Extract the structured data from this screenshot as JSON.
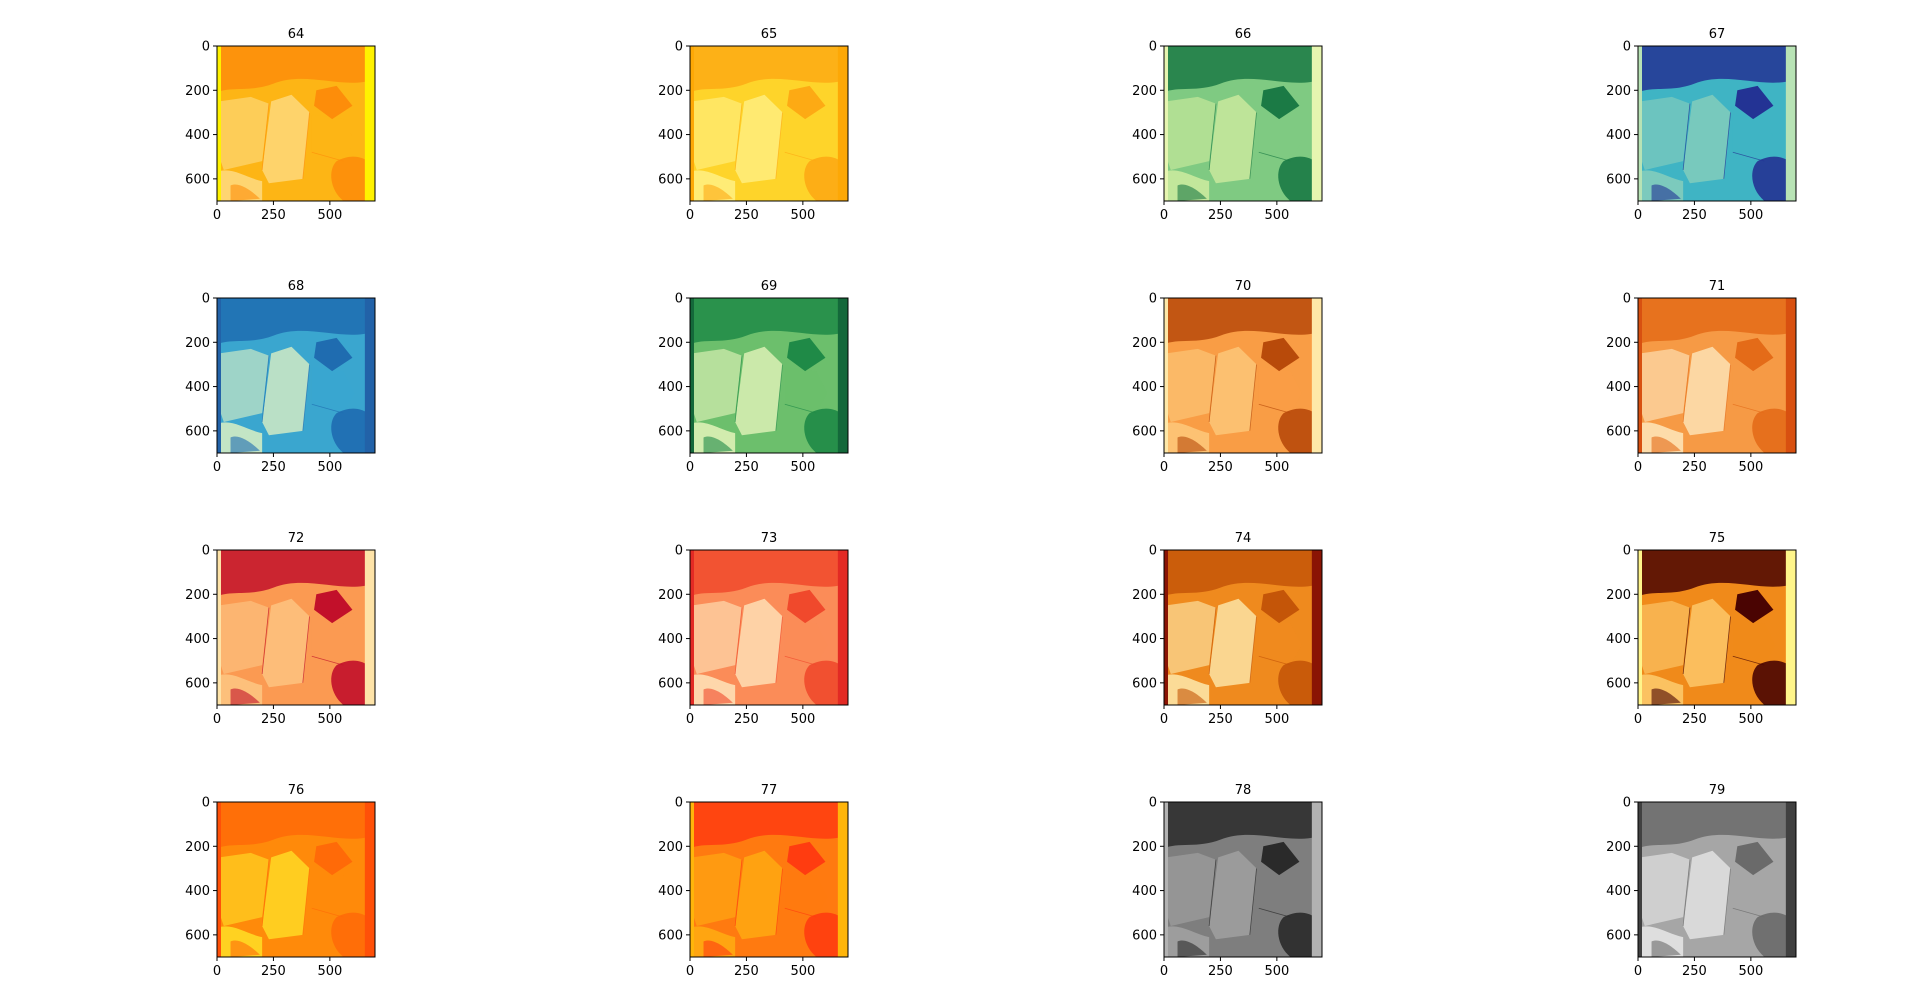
{
  "chart_data": {
    "type": "heatmap",
    "description_layout": "4x4 grid of image subplots",
    "xticks": [
      0,
      250,
      500
    ],
    "yticks": [
      0,
      200,
      400,
      600
    ],
    "xlim": [
      0,
      700
    ],
    "ylim": [
      700,
      0
    ],
    "panels": [
      {
        "title": "64",
        "palette": {
          "hi": "#fee090",
          "mid": "#fdb515",
          "lo": "#fd8d0a",
          "edge": "#fff200"
        }
      },
      {
        "title": "65",
        "palette": {
          "hi": "#fff490",
          "mid": "#fed42a",
          "lo": "#fdaa14",
          "edge": "#fda806"
        }
      },
      {
        "title": "66",
        "palette": {
          "hi": "#d8f0a3",
          "mid": "#7fca82",
          "lo": "#1b7a45",
          "edge": "#e6f5b0"
        }
      },
      {
        "title": "67",
        "palette": {
          "hi": "#91d2bb",
          "mid": "#3fb4c4",
          "lo": "#233394",
          "edge": "#b8e3b5"
        }
      },
      {
        "title": "68",
        "palette": {
          "hi": "#f1f9c2",
          "mid": "#3aa6cf",
          "lo": "#1f6cb0",
          "edge": "#2262a8"
        }
      },
      {
        "title": "69",
        "palette": {
          "hi": "#f4fbc4",
          "mid": "#6cbf6c",
          "lo": "#1f8a47",
          "edge": "#14683a"
        }
      },
      {
        "title": "70",
        "palette": {
          "hi": "#fdcf83",
          "mid": "#f99d45",
          "lo": "#b84a0a",
          "edge": "#fee8a8"
        }
      },
      {
        "title": "71",
        "palette": {
          "hi": "#fff1cc",
          "mid": "#f69a45",
          "lo": "#e46b18",
          "edge": "#d85010"
        }
      },
      {
        "title": "72",
        "palette": {
          "hi": "#fdcc8a",
          "mid": "#fb9a52",
          "lo": "#c2102a",
          "edge": "#fee3a8"
        }
      },
      {
        "title": "73",
        "palette": {
          "hi": "#fff0c7",
          "mid": "#fb8c58",
          "lo": "#f0492c",
          "edge": "#e32a24"
        }
      },
      {
        "title": "74",
        "palette": {
          "hi": "#fff6c0",
          "mid": "#ef8a1e",
          "lo": "#c45508",
          "edge": "#8a1404"
        }
      },
      {
        "title": "75",
        "palette": {
          "hi": "#ffd47a",
          "mid": "#f08a1a",
          "lo": "#4a0402",
          "edge": "#fff58a"
        }
      },
      {
        "title": "76",
        "palette": {
          "hi": "#ffea2a",
          "mid": "#ff8a0a",
          "lo": "#ff6a08",
          "edge": "#ff5008"
        }
      },
      {
        "title": "77",
        "palette": {
          "hi": "#ffb412",
          "mid": "#ff7a10",
          "lo": "#ff3c10",
          "edge": "#ffb50a"
        }
      },
      {
        "title": "78",
        "palette": {
          "hi": "#a8a8a8",
          "mid": "#7e7e7e",
          "lo": "#2a2a2a",
          "edge": "#b2b2b2"
        }
      },
      {
        "title": "79",
        "palette": {
          "hi": "#f0f0f0",
          "mid": "#a6a6a6",
          "lo": "#6a6a6a",
          "edge": "#404040"
        }
      }
    ]
  }
}
